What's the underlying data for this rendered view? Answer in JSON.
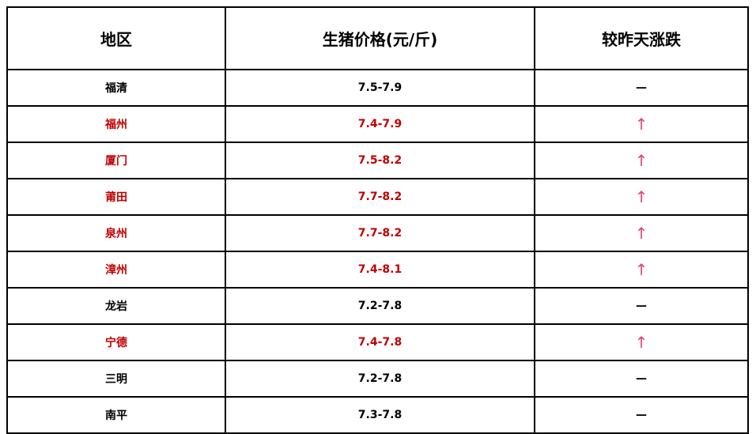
{
  "headers": [
    "地区",
    "生猪价格(元/斤)",
    "较昨天涨跌"
  ],
  "colors": {
    "rise_text": "#c00000",
    "rise_arrow": "#e0447a",
    "flat": "#000000"
  },
  "rows": [
    {
      "region": "福清",
      "price": "7.5-7.9",
      "change": "—",
      "trend": "flat"
    },
    {
      "region": "福州",
      "price": "7.4-7.9",
      "change": "↑",
      "trend": "up"
    },
    {
      "region": "厦门",
      "price": "7.5-8.2",
      "change": "↑",
      "trend": "up"
    },
    {
      "region": "莆田",
      "price": "7.7-8.2",
      "change": "↑",
      "trend": "up"
    },
    {
      "region": "泉州",
      "price": "7.7-8.2",
      "change": "↑",
      "trend": "up"
    },
    {
      "region": "漳州",
      "price": "7.4-8.1",
      "change": "↑",
      "trend": "up"
    },
    {
      "region": "龙岩",
      "price": "7.2-7.8",
      "change": "—",
      "trend": "flat"
    },
    {
      "region": "宁德",
      "price": "7.4-7.8",
      "change": "↑",
      "trend": "up"
    },
    {
      "region": "三明",
      "price": "7.2-7.8",
      "change": "—",
      "trend": "flat"
    },
    {
      "region": "南平",
      "price": "7.3-7.8",
      "change": "—",
      "trend": "flat"
    }
  ]
}
